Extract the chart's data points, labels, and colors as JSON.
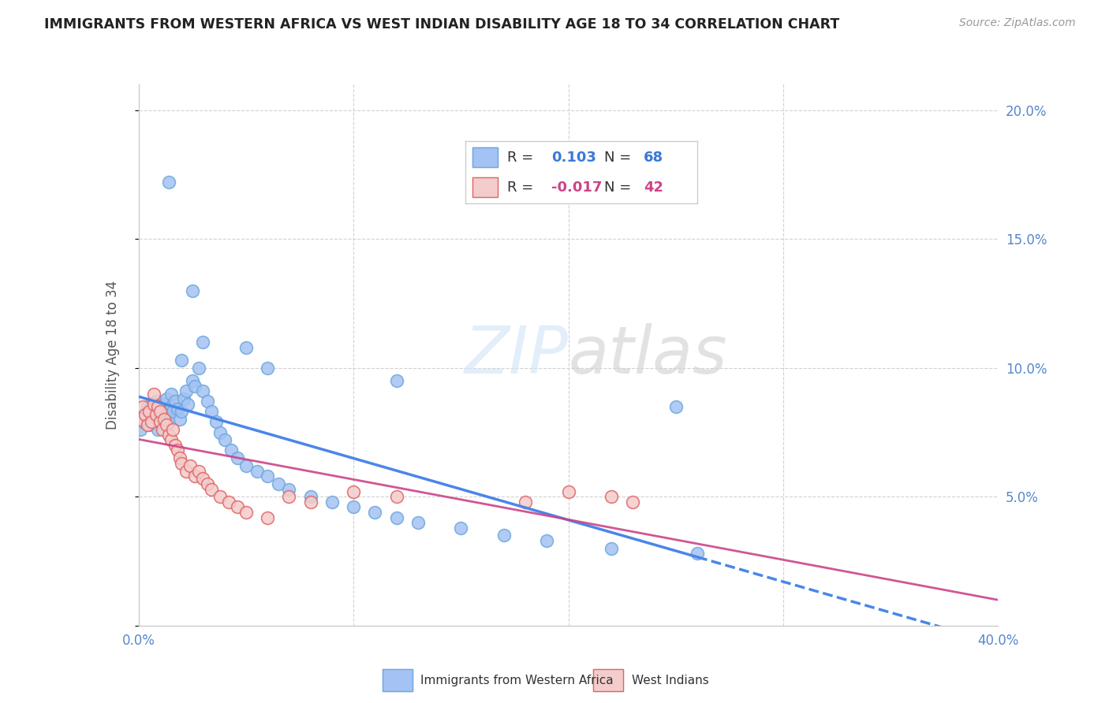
{
  "title": "IMMIGRANTS FROM WESTERN AFRICA VS WEST INDIAN DISABILITY AGE 18 TO 34 CORRELATION CHART",
  "source": "Source: ZipAtlas.com",
  "ylabel": "Disability Age 18 to 34",
  "xlim": [
    0.0,
    0.4
  ],
  "ylim": [
    0.0,
    0.21
  ],
  "series1_name": "Immigrants from Western Africa",
  "series1_color": "#a4c2f4",
  "series1_edge": "#6fa8dc",
  "series1_line": "#4a86e8",
  "series1_R": 0.103,
  "series1_N": 68,
  "series2_name": "West Indians",
  "series2_color": "#f4cccc",
  "series2_edge": "#e06666",
  "series2_line": "#cc4488",
  "series2_R": -0.017,
  "series2_N": 42,
  "grid_color": "#cccccc",
  "background_color": "#ffffff",
  "series1_x": [
    0.001,
    0.002,
    0.003,
    0.004,
    0.005,
    0.005,
    0.006,
    0.006,
    0.007,
    0.007,
    0.008,
    0.008,
    0.009,
    0.009,
    0.01,
    0.01,
    0.011,
    0.011,
    0.012,
    0.012,
    0.013,
    0.013,
    0.014,
    0.015,
    0.015,
    0.016,
    0.017,
    0.018,
    0.019,
    0.02,
    0.021,
    0.022,
    0.023,
    0.025,
    0.026,
    0.028,
    0.03,
    0.032,
    0.034,
    0.036,
    0.038,
    0.04,
    0.043,
    0.046,
    0.05,
    0.055,
    0.06,
    0.065,
    0.07,
    0.08,
    0.09,
    0.1,
    0.11,
    0.12,
    0.13,
    0.15,
    0.17,
    0.19,
    0.22,
    0.26,
    0.014,
    0.02,
    0.025,
    0.03,
    0.05,
    0.06,
    0.12,
    0.25
  ],
  "series1_y": [
    0.076,
    0.079,
    0.082,
    0.085,
    0.078,
    0.083,
    0.081,
    0.086,
    0.079,
    0.084,
    0.08,
    0.087,
    0.076,
    0.083,
    0.08,
    0.085,
    0.078,
    0.082,
    0.079,
    0.086,
    0.082,
    0.088,
    0.079,
    0.085,
    0.09,
    0.083,
    0.087,
    0.084,
    0.08,
    0.083,
    0.088,
    0.091,
    0.086,
    0.095,
    0.093,
    0.1,
    0.091,
    0.087,
    0.083,
    0.079,
    0.075,
    0.072,
    0.068,
    0.065,
    0.062,
    0.06,
    0.058,
    0.055,
    0.053,
    0.05,
    0.048,
    0.046,
    0.044,
    0.042,
    0.04,
    0.038,
    0.035,
    0.033,
    0.03,
    0.028,
    0.172,
    0.103,
    0.13,
    0.11,
    0.108,
    0.1,
    0.095,
    0.085
  ],
  "series2_x": [
    0.001,
    0.002,
    0.003,
    0.004,
    0.005,
    0.006,
    0.007,
    0.007,
    0.008,
    0.009,
    0.01,
    0.01,
    0.011,
    0.012,
    0.013,
    0.014,
    0.015,
    0.016,
    0.017,
    0.018,
    0.019,
    0.02,
    0.022,
    0.024,
    0.026,
    0.028,
    0.03,
    0.032,
    0.034,
    0.038,
    0.042,
    0.046,
    0.05,
    0.06,
    0.07,
    0.08,
    0.1,
    0.12,
    0.18,
    0.2,
    0.22,
    0.23
  ],
  "series2_y": [
    0.08,
    0.085,
    0.082,
    0.078,
    0.083,
    0.079,
    0.086,
    0.09,
    0.082,
    0.085,
    0.079,
    0.083,
    0.076,
    0.08,
    0.078,
    0.074,
    0.072,
    0.076,
    0.07,
    0.068,
    0.065,
    0.063,
    0.06,
    0.062,
    0.058,
    0.06,
    0.057,
    0.055,
    0.053,
    0.05,
    0.048,
    0.046,
    0.044,
    0.042,
    0.05,
    0.048,
    0.052,
    0.05,
    0.048,
    0.052,
    0.05,
    0.048
  ]
}
